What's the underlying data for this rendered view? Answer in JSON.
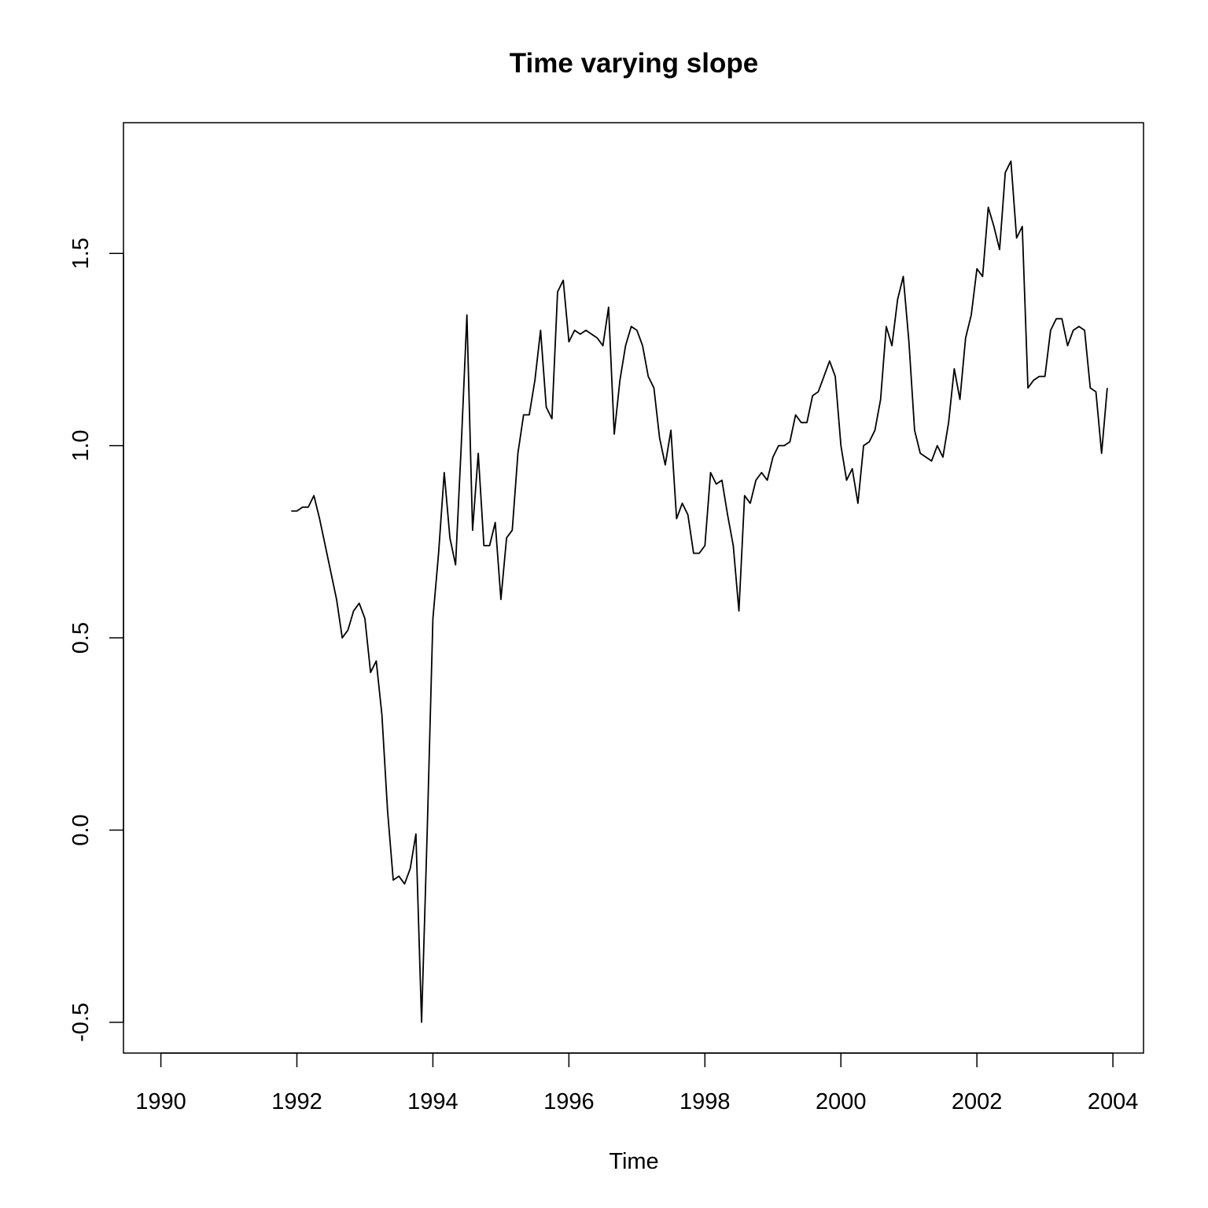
{
  "chart_data": {
    "type": "line",
    "title": "Time varying slope",
    "xlabel": "Time",
    "ylabel": "",
    "xlim": [
      1989.45,
      2004.45
    ],
    "ylim": [
      -0.58,
      1.84
    ],
    "x_ticks": [
      1990,
      1992,
      1994,
      1996,
      1998,
      2000,
      2002,
      2004
    ],
    "x_tick_labels": [
      "1990",
      "1992",
      "1994",
      "1996",
      "1998",
      "2000",
      "2002",
      "2004"
    ],
    "y_ticks": [
      -0.5,
      0.0,
      0.5,
      1.0,
      1.5
    ],
    "y_tick_labels": [
      "-0.5",
      "0.0",
      "0.5",
      "1.0",
      "1.5"
    ],
    "grid": false,
    "series": [
      {
        "start": 1991.917,
        "frequency": 12,
        "values": [
          0.83,
          0.83,
          0.84,
          0.84,
          0.87,
          0.81,
          0.74,
          0.67,
          0.6,
          0.5,
          0.52,
          0.57,
          0.59,
          0.55,
          0.41,
          0.44,
          0.3,
          0.05,
          -0.13,
          -0.12,
          -0.14,
          -0.1,
          -0.01,
          -0.5,
          0.0,
          0.55,
          0.72,
          0.93,
          0.76,
          0.69,
          1.0,
          1.34,
          0.78,
          0.98,
          0.74,
          0.74,
          0.8,
          0.6,
          0.76,
          0.78,
          0.98,
          1.08,
          1.08,
          1.17,
          1.3,
          1.1,
          1.07,
          1.4,
          1.43,
          1.27,
          1.3,
          1.29,
          1.3,
          1.29,
          1.28,
          1.26,
          1.36,
          1.03,
          1.17,
          1.26,
          1.31,
          1.3,
          1.26,
          1.18,
          1.15,
          1.02,
          0.95,
          1.04,
          0.81,
          0.85,
          0.82,
          0.72,
          0.72,
          0.74,
          0.93,
          0.9,
          0.91,
          0.82,
          0.74,
          0.57,
          0.87,
          0.85,
          0.91,
          0.93,
          0.91,
          0.97,
          1.0,
          1.0,
          1.01,
          1.08,
          1.06,
          1.06,
          1.13,
          1.14,
          1.18,
          1.22,
          1.18,
          1.0,
          0.91,
          0.94,
          0.85,
          1.0,
          1.01,
          1.04,
          1.12,
          1.31,
          1.26,
          1.38,
          1.44,
          1.27,
          1.04,
          0.98,
          0.97,
          0.96,
          1.0,
          0.97,
          1.06,
          1.2,
          1.12,
          1.28,
          1.34,
          1.46,
          1.44,
          1.62,
          1.57,
          1.51,
          1.71,
          1.74,
          1.54,
          1.57,
          1.15,
          1.17,
          1.18,
          1.18,
          1.3,
          1.33,
          1.33,
          1.26,
          1.3,
          1.31,
          1.3,
          1.15,
          1.14,
          0.98,
          1.15
        ]
      }
    ]
  }
}
